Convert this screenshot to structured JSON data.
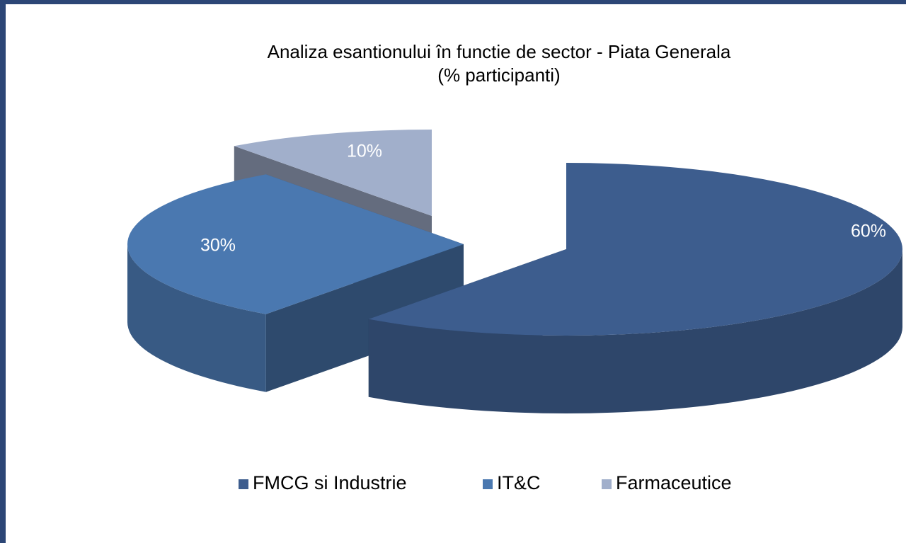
{
  "chart_data": {
    "type": "pie3d",
    "title": "Analiza esantionului în functie de sector - Piata Generala",
    "subtitle": "(% participanti)",
    "categories": [
      "FMCG si Industrie",
      "IT&C",
      "Farmaceutice"
    ],
    "values": [
      60,
      30,
      10
    ],
    "value_labels": [
      "60%",
      "30%",
      "10%"
    ],
    "colors": [
      "#3d5d8e",
      "#4a78b0",
      "#a1afcb"
    ],
    "legend": "bottom"
  }
}
